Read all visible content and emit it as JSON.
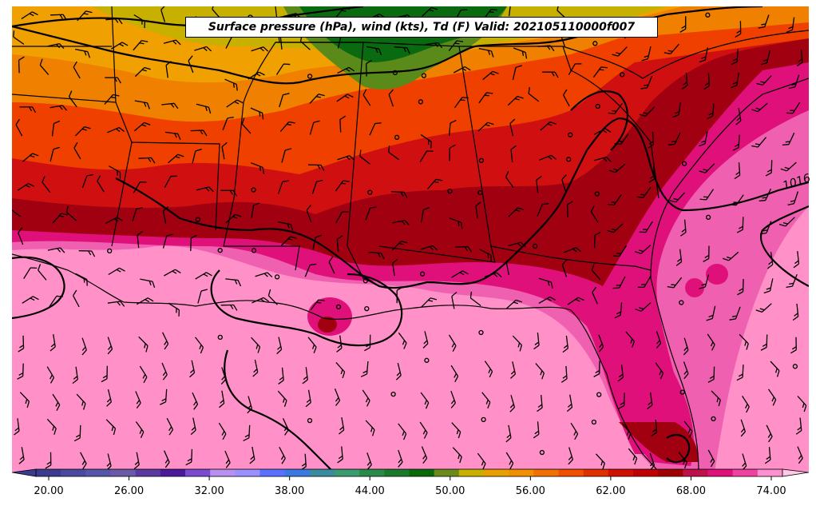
{
  "title": "Surface pressure (hPa), wind (kts), Td (F) Valid: 202105110000f007",
  "colorbar": {
    "tick_labels": [
      "20.00",
      "26.00",
      "32.00",
      "38.00",
      "44.00",
      "50.00",
      "56.00",
      "62.00",
      "68.00",
      "74.00"
    ],
    "colors": [
      "#3b3b8f",
      "#4a4aa0",
      "#5656a8",
      "#6a5aa8",
      "#5a3aa0",
      "#4a1a9a",
      "#7a4ad0",
      "#b890f0",
      "#9a90ff",
      "#5a70ff",
      "#3a7ae0",
      "#3a8aa0",
      "#3a9a70",
      "#2a8a4a",
      "#1a7a2a",
      "#0a6a0a",
      "#6a8a1a",
      "#c8b000",
      "#e8a000",
      "#f09000",
      "#f07000",
      "#f05000",
      "#e03000",
      "#d01000",
      "#c00000",
      "#a00000",
      "#c0104a",
      "#e0107a",
      "#f040a0",
      "#ff90d0"
    ]
  },
  "isobar_labels": [
    "1016"
  ],
  "legend_colors": {
    "ocean_pink": "#ff90c8",
    "hot_pink": "#f060b0",
    "magenta": "#e0107a",
    "dark_red": "#a00010",
    "red": "#d01010",
    "orange_red": "#f04000",
    "orange": "#f08000",
    "yellow_orange": "#f0a000",
    "olive": "#c8b000",
    "green": "#5a8a1a",
    "dark_green": "#0a6a10"
  }
}
